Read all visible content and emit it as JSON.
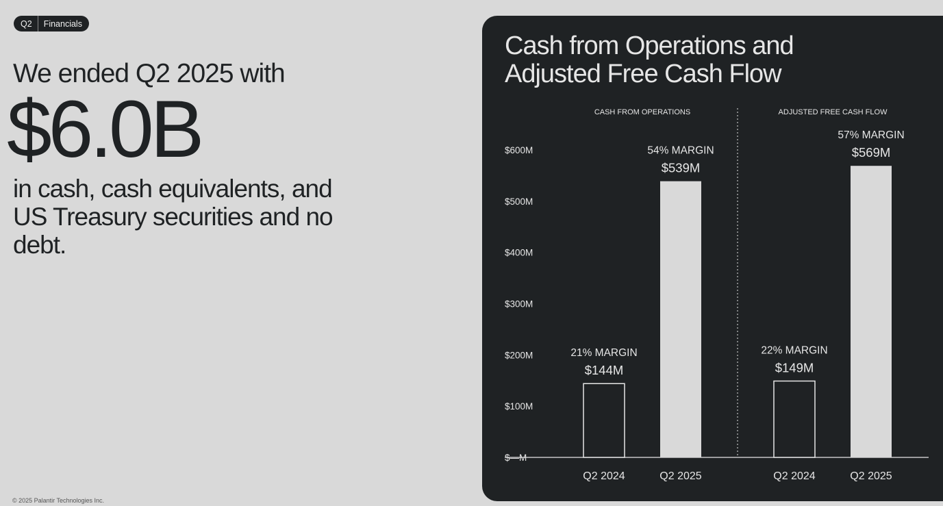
{
  "badge": {
    "quarter": "Q2",
    "section": "Financials"
  },
  "lead_text": "We ended Q2 2025 with",
  "headline_value": "$6.0B",
  "description": "in cash, cash equivalents, and US Treasury securities and no debt.",
  "footer": "© 2025 Palantir Technologies Inc.",
  "colors": {
    "page_bg": "#d9d9d9",
    "panel_bg": "#1f2224",
    "text_light": "#e6e6e6",
    "bar_fill_current": "#d9d9d9"
  },
  "chart_data": {
    "type": "bar",
    "title": "Cash from Operations and Adjusted Free Cash Flow",
    "ylim": [
      0,
      600
    ],
    "yticks": [
      "$—M",
      "$100M",
      "$200M",
      "$300M",
      "$400M",
      "$500M",
      "$600M"
    ],
    "grid": false,
    "groups": [
      {
        "name": "CASH FROM OPERATIONS",
        "categories": [
          "Q2 2024",
          "Q2 2025"
        ],
        "values": [
          144,
          539
        ],
        "value_labels": [
          "$144M",
          "$539M"
        ],
        "margin_labels": [
          "21% MARGIN",
          "54% MARGIN"
        ]
      },
      {
        "name": "ADJUSTED FREE CASH FLOW",
        "categories": [
          "Q2 2024",
          "Q2 2025"
        ],
        "values": [
          149,
          569
        ],
        "value_labels": [
          "$149M",
          "$569M"
        ],
        "margin_labels": [
          "22% MARGIN",
          "57% MARGIN"
        ]
      }
    ]
  }
}
